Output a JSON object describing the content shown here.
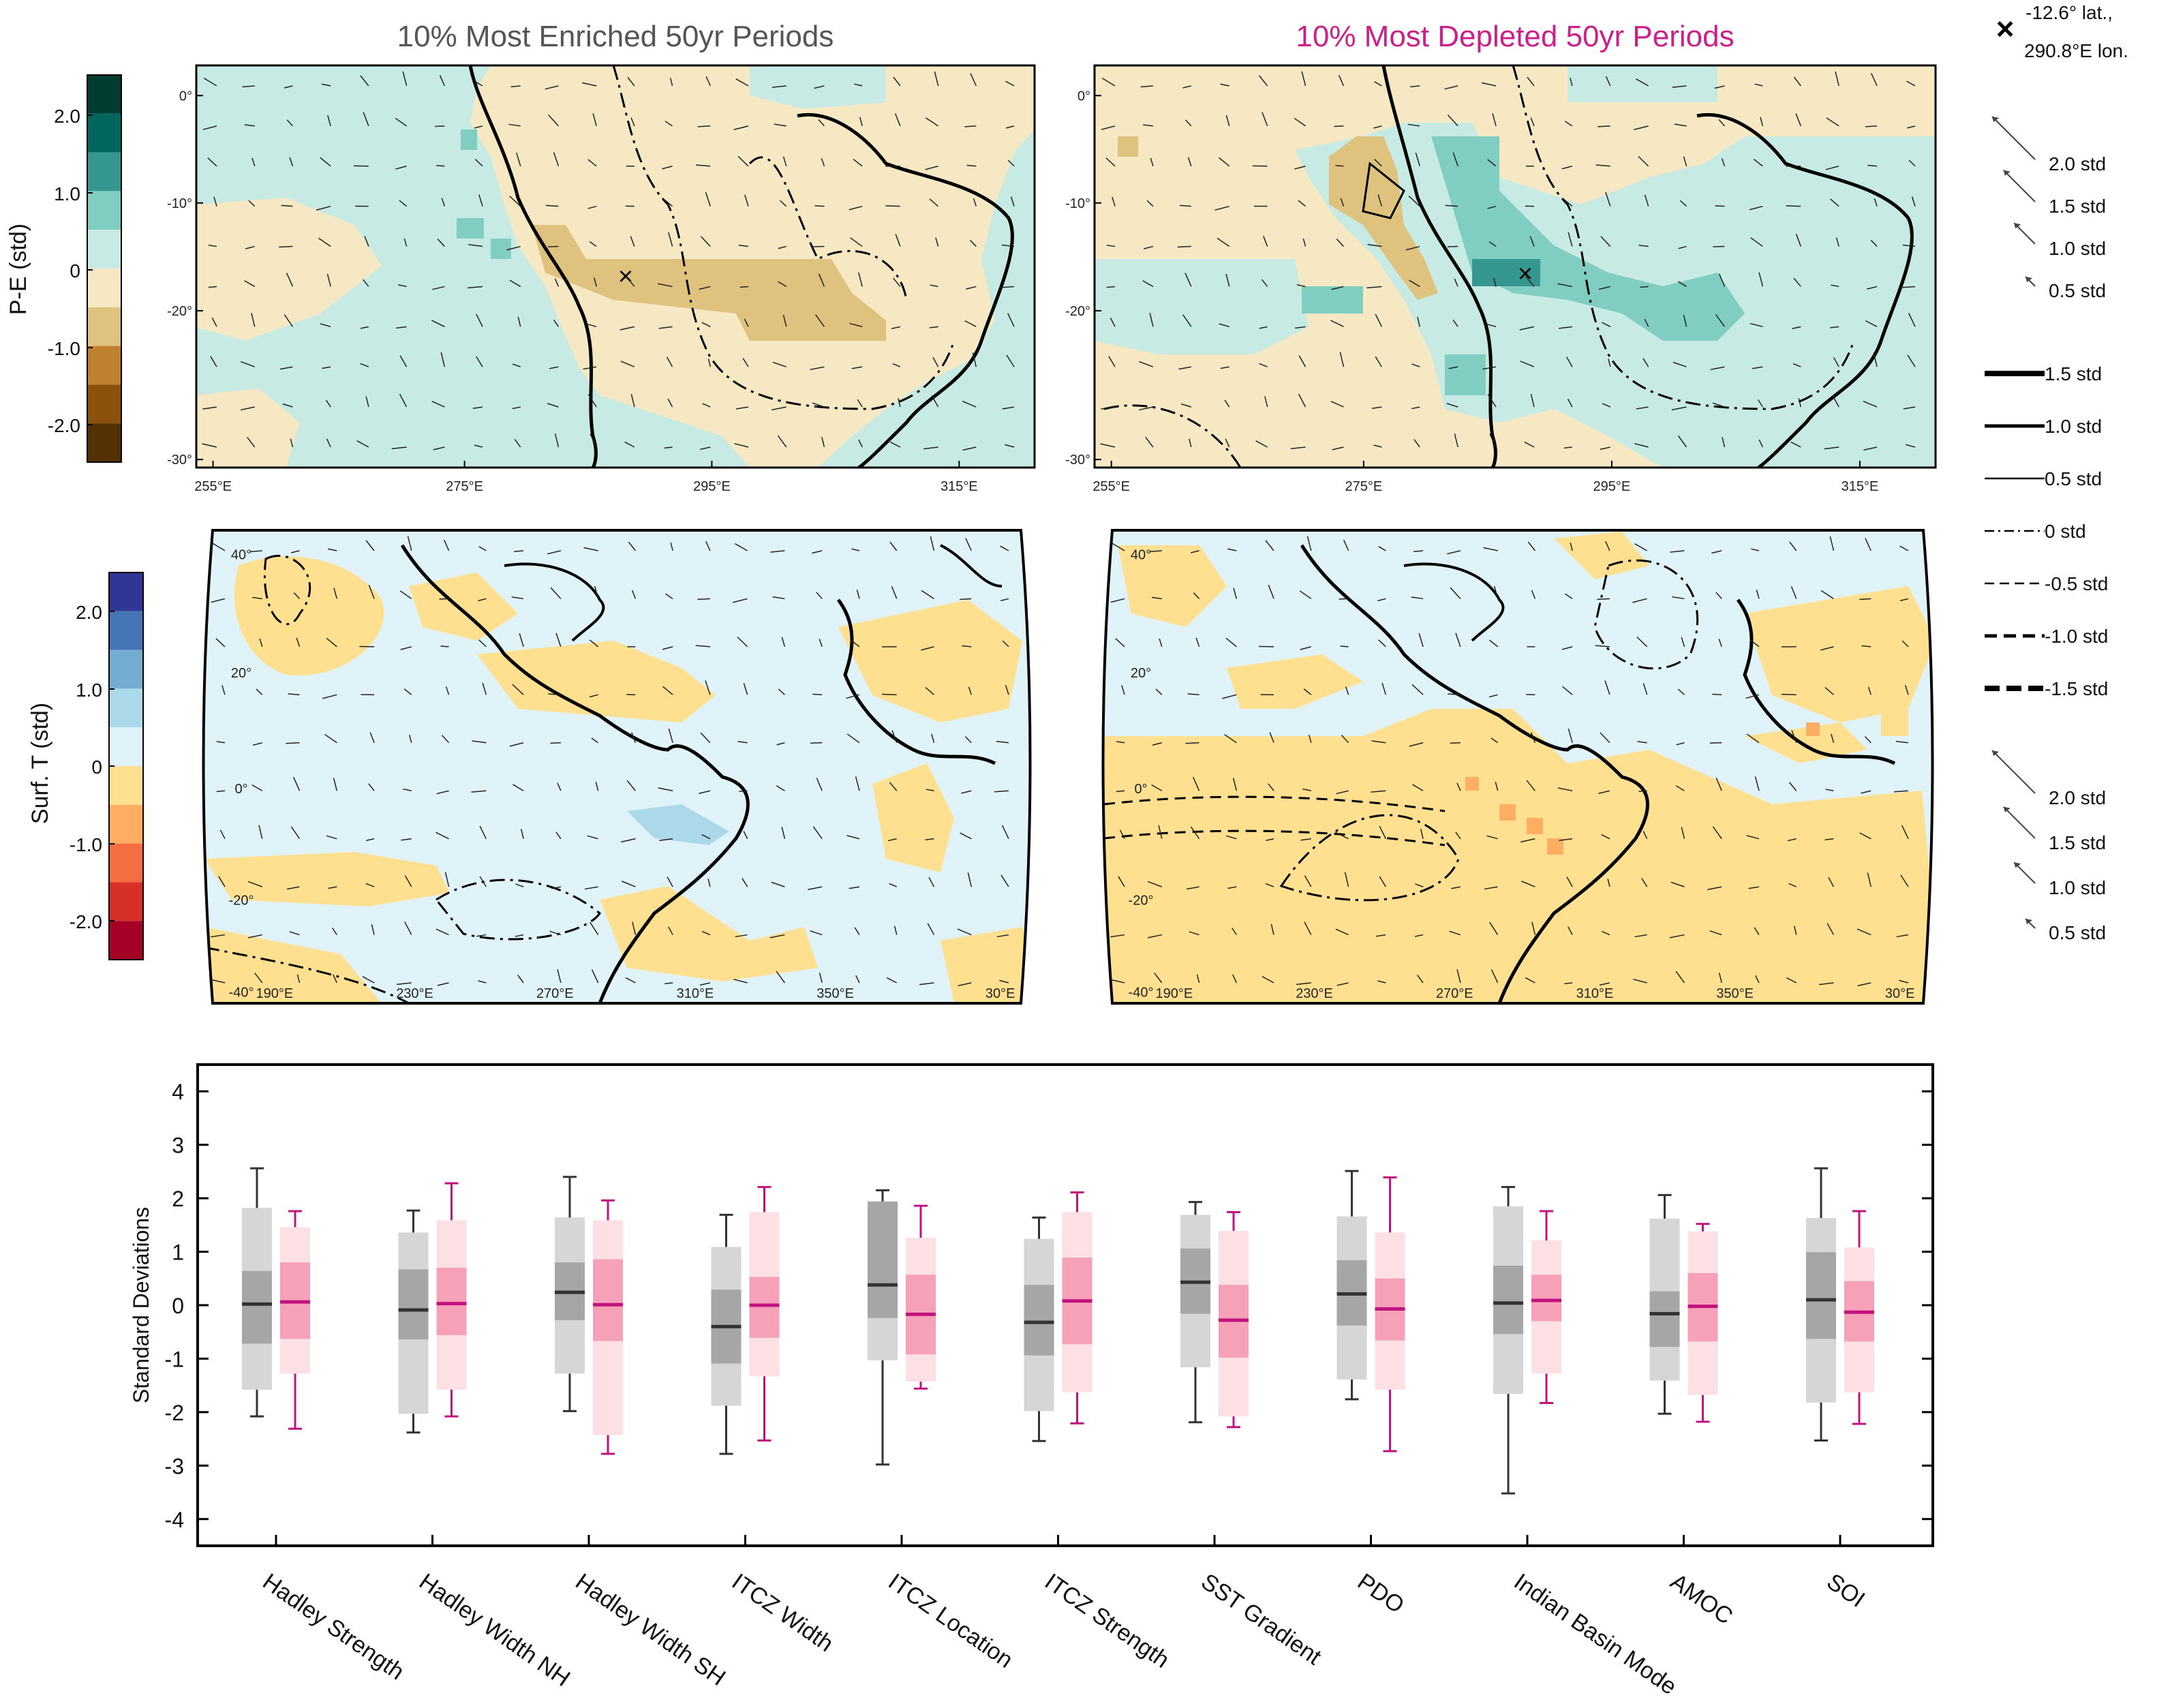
{
  "panel_titles": {
    "enriched": "10% Most Enriched 50yr Periods",
    "depleted": "10% Most Depleted 50yr Periods"
  },
  "colors": {
    "enriched": "#555555",
    "depleted": "#cc1f8a"
  },
  "location": {
    "line1": "-12.6° lat.,",
    "line2": "290.8°E lon."
  },
  "pe_colorbar": {
    "label": "P-E (std)",
    "ticks": [
      "2.0",
      "1.0",
      "0",
      "-1.0",
      "-2.0"
    ],
    "colors": [
      "#003c30",
      "#01665e",
      "#35978f",
      "#80cdc1",
      "#c7eae5",
      "#f6e8c3",
      "#dfc27d",
      "#bf812d",
      "#8c510a",
      "#543005"
    ]
  },
  "t_colorbar": {
    "label": "Surf. T (std)",
    "ticks": [
      "2.0",
      "1.0",
      "0",
      "-1.0",
      "-2.0"
    ],
    "colors": [
      "#313695",
      "#4575b4",
      "#74add1",
      "#abd9e9",
      "#e0f3f8",
      "#fee090",
      "#fdae61",
      "#f46d43",
      "#d73027",
      "#a50026"
    ]
  },
  "pe_maps": {
    "lat_ticks": [
      "0°",
      "-10°",
      "-20°",
      "-30°"
    ],
    "lon_ticks": [
      "255°E",
      "275°E",
      "295°E",
      "315°E"
    ]
  },
  "t_maps": {
    "lat_ticks": [
      "40°",
      "20°",
      "0°",
      "-20°",
      "-40°"
    ],
    "lon_ticks": [
      "190°E",
      "230°E",
      "270°E",
      "310°E",
      "350°E",
      "30°E"
    ]
  },
  "arrow_legend_top": [
    "2.0 std",
    "1.5 std",
    "1.0 std",
    "0.5 std"
  ],
  "line_legend": [
    "1.5 std",
    "1.0 std",
    "0.5 std",
    "0 std",
    "-0.5 std",
    "-1.0 std",
    "-1.5 std"
  ],
  "arrow_legend_bottom": [
    "2.0 std",
    "1.5 std",
    "1.0 std",
    "0.5 std"
  ],
  "chart_data": {
    "type": "box",
    "ylabel": "Standard Deviations",
    "ylim": [
      -4.5,
      4.5
    ],
    "yticks": [
      4,
      3,
      2,
      1,
      0,
      -1,
      -2,
      -3,
      -4
    ],
    "categories": [
      "Hadley Strength",
      "Hadley Width NH",
      "Hadley Width SH",
      "ITCZ Width",
      "ITCZ Location",
      "ITCZ Strength",
      "SST Gradient",
      "PDO",
      "Indian Basin Mode",
      "AMOC",
      "SOI"
    ],
    "series": [
      {
        "group": "enriched",
        "boxes": [
          {
            "whisker_low": -2.08,
            "p5": -1.58,
            "q1": -0.72,
            "median": 0.02,
            "q3": 0.64,
            "p95": 1.82,
            "whisker_high": 2.56
          },
          {
            "whisker_low": -2.38,
            "p5": -2.03,
            "q1": -0.64,
            "median": -0.09,
            "q3": 0.67,
            "p95": 1.36,
            "whisker_high": 1.77
          },
          {
            "whisker_low": -1.98,
            "p5": -1.28,
            "q1": -0.28,
            "median": 0.24,
            "q3": 0.8,
            "p95": 1.64,
            "whisker_high": 2.4
          },
          {
            "whisker_low": -2.78,
            "p5": -1.88,
            "q1": -1.09,
            "median": -0.4,
            "q3": 0.29,
            "p95": 1.09,
            "whisker_high": 1.69
          },
          {
            "whisker_low": -2.98,
            "p5": -1.03,
            "q1": -0.24,
            "median": 0.38,
            "q3": 1.94,
            "p95": 1.94,
            "whisker_high": 2.15
          },
          {
            "whisker_low": -2.54,
            "p5": -1.98,
            "q1": -0.94,
            "median": -0.32,
            "q3": 0.38,
            "p95": 1.24,
            "whisker_high": 1.64
          },
          {
            "whisker_low": -2.19,
            "p5": -1.16,
            "q1": -0.16,
            "median": 0.43,
            "q3": 1.06,
            "p95": 1.69,
            "whisker_high": 1.93
          },
          {
            "whisker_low": -1.76,
            "p5": -1.39,
            "q1": -0.38,
            "median": 0.21,
            "q3": 0.84,
            "p95": 1.66,
            "whisker_high": 2.51
          },
          {
            "whisker_low": -3.52,
            "p5": -1.66,
            "q1": -0.54,
            "median": 0.04,
            "q3": 0.74,
            "p95": 1.85,
            "whisker_high": 2.21
          },
          {
            "whisker_low": -2.03,
            "p5": -1.41,
            "q1": -0.78,
            "median": -0.16,
            "q3": 0.26,
            "p95": 1.62,
            "whisker_high": 2.06
          },
          {
            "whisker_low": -2.53,
            "p5": -1.82,
            "q1": -0.63,
            "median": 0.1,
            "q3": 0.99,
            "p95": 1.63,
            "whisker_high": 2.56
          }
        ]
      },
      {
        "group": "depleted",
        "boxes": [
          {
            "whisker_low": -2.31,
            "p5": -1.28,
            "q1": -0.63,
            "median": 0.06,
            "q3": 0.8,
            "p95": 1.46,
            "whisker_high": 1.76
          },
          {
            "whisker_low": -2.08,
            "p5": -1.58,
            "q1": -0.56,
            "median": 0.03,
            "q3": 0.7,
            "p95": 1.59,
            "whisker_high": 2.28
          },
          {
            "whisker_low": -2.78,
            "p5": -2.43,
            "q1": -0.67,
            "median": 0.01,
            "q3": 0.86,
            "p95": 1.59,
            "whisker_high": 1.96
          },
          {
            "whisker_low": -2.53,
            "p5": -1.33,
            "q1": -0.61,
            "median": 0.0,
            "q3": 0.53,
            "p95": 1.74,
            "whisker_high": 2.21
          },
          {
            "whisker_low": -1.56,
            "p5": -1.43,
            "q1": -0.92,
            "median": -0.17,
            "q3": 0.57,
            "p95": 1.26,
            "whisker_high": 1.86
          },
          {
            "whisker_low": -2.21,
            "p5": -1.63,
            "q1": -0.73,
            "median": 0.08,
            "q3": 0.89,
            "p95": 1.74,
            "whisker_high": 2.11
          },
          {
            "whisker_low": -2.28,
            "p5": -2.08,
            "q1": -0.98,
            "median": -0.28,
            "q3": 0.38,
            "p95": 1.39,
            "whisker_high": 1.74
          },
          {
            "whisker_low": -2.73,
            "p5": -1.58,
            "q1": -0.66,
            "median": -0.07,
            "q3": 0.5,
            "p95": 1.36,
            "whisker_high": 2.39
          },
          {
            "whisker_low": -1.83,
            "p5": -1.28,
            "q1": -0.3,
            "median": 0.09,
            "q3": 0.57,
            "p95": 1.21,
            "whisker_high": 1.76
          },
          {
            "whisker_low": -2.18,
            "p5": -1.68,
            "q1": -0.68,
            "median": -0.02,
            "q3": 0.6,
            "p95": 1.38,
            "whisker_high": 1.52
          },
          {
            "whisker_low": -2.22,
            "p5": -1.63,
            "q1": -0.68,
            "median": -0.13,
            "q3": 0.45,
            "p95": 1.08,
            "whisker_high": 1.76
          }
        ]
      }
    ]
  }
}
